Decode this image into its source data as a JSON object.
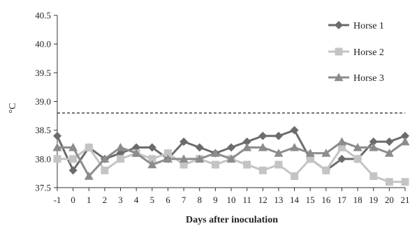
{
  "chart_data": {
    "type": "line",
    "title": "",
    "xlabel": "Days after inoculation",
    "ylabel": "°C",
    "ylim": [
      37.5,
      40.5
    ],
    "yticks": [
      "40.5",
      "40.0",
      "39.5",
      "39.0",
      "38.5",
      "38.0",
      "37.5"
    ],
    "x": [
      -1,
      0,
      1,
      2,
      3,
      4,
      5,
      6,
      7,
      8,
      9,
      10,
      11,
      12,
      13,
      14,
      15,
      16,
      17,
      18,
      19,
      20,
      21
    ],
    "xticks": [
      "-1",
      "0",
      "1",
      "2",
      "3",
      "4",
      "5",
      "6",
      "7",
      "8",
      "9",
      "10",
      "11",
      "12",
      "13",
      "14",
      "15",
      "16",
      "17",
      "18",
      "19",
      "20",
      "21"
    ],
    "threshold": 38.8,
    "legend_position": "top-right",
    "grid": false,
    "series": [
      {
        "name": "Horse 1",
        "marker": "diamond",
        "color": "#6b6b6b",
        "values": [
          38.4,
          37.8,
          38.2,
          38.0,
          38.1,
          38.2,
          38.2,
          38.0,
          38.3,
          38.2,
          38.1,
          38.2,
          38.3,
          38.4,
          38.4,
          38.5,
          38.0,
          37.8,
          38.0,
          38.0,
          38.3,
          38.3,
          38.4
        ]
      },
      {
        "name": "Horse 2",
        "marker": "square",
        "color": "#c4c4c4",
        "values": [
          38.0,
          38.0,
          38.2,
          37.8,
          38.0,
          38.1,
          38.0,
          38.1,
          37.9,
          38.0,
          37.9,
          38.0,
          37.9,
          37.8,
          37.9,
          37.7,
          38.0,
          37.8,
          38.2,
          38.0,
          37.7,
          37.6,
          37.6
        ]
      },
      {
        "name": "Horse 3",
        "marker": "triangle",
        "color": "#8c8c8c",
        "values": [
          38.2,
          38.2,
          37.7,
          38.0,
          38.2,
          38.1,
          37.9,
          38.0,
          38.0,
          38.0,
          38.1,
          38.0,
          38.2,
          38.2,
          38.1,
          38.2,
          38.1,
          38.1,
          38.3,
          38.2,
          38.2,
          38.1,
          38.3
        ]
      }
    ]
  }
}
